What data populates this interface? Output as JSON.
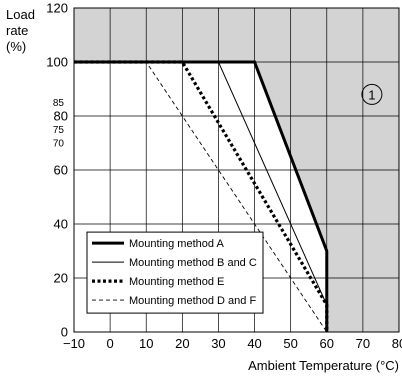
{
  "chart_data": {
    "type": "line",
    "title": "",
    "ylabel": "Load rate (%)",
    "ylabel_lines": [
      "Load",
      "rate",
      "(%)"
    ],
    "xlabel": "Ambient Temperature (°C)",
    "xlim": [
      -10,
      80
    ],
    "ylim": [
      0,
      120
    ],
    "x_ticks": [
      -10,
      0,
      10,
      20,
      30,
      40,
      50,
      60,
      70,
      80
    ],
    "x_tick_labels": [
      "−10",
      "0",
      "10",
      "20",
      "30",
      "40",
      "50",
      "60",
      "70",
      "80"
    ],
    "y_ticks": [
      0,
      20,
      40,
      60,
      80,
      100,
      120
    ],
    "y_tick_labels": [
      "0",
      "20",
      "40",
      "60",
      "80",
      "100",
      "120"
    ],
    "y_minor_ticks": [
      85,
      75,
      70
    ],
    "y_minor_tick_labels": [
      "85",
      "75",
      "70"
    ],
    "grid": true,
    "region_label": "1",
    "legend_position": "bottom-left",
    "series": [
      {
        "name": "Mounting method A",
        "style": "thick-solid",
        "points": [
          [
            -10,
            100
          ],
          [
            40,
            100
          ],
          [
            60,
            30
          ],
          [
            60,
            0
          ]
        ]
      },
      {
        "name": "Mounting method B and C",
        "style": "thin-solid",
        "points": [
          [
            -10,
            100
          ],
          [
            30,
            100
          ],
          [
            60,
            10
          ],
          [
            60,
            0
          ]
        ]
      },
      {
        "name": "Mounting method E",
        "style": "thick-dotted",
        "points": [
          [
            -10,
            100
          ],
          [
            20,
            100
          ],
          [
            60,
            10
          ],
          [
            60,
            0
          ]
        ]
      },
      {
        "name": "Mounting method D and F",
        "style": "thin-dashed",
        "points": [
          [
            -10,
            100
          ],
          [
            10,
            100
          ],
          [
            60,
            0
          ]
        ]
      }
    ],
    "colors": {
      "shaded_region": "#d3d3d3",
      "line": "#000000"
    }
  }
}
